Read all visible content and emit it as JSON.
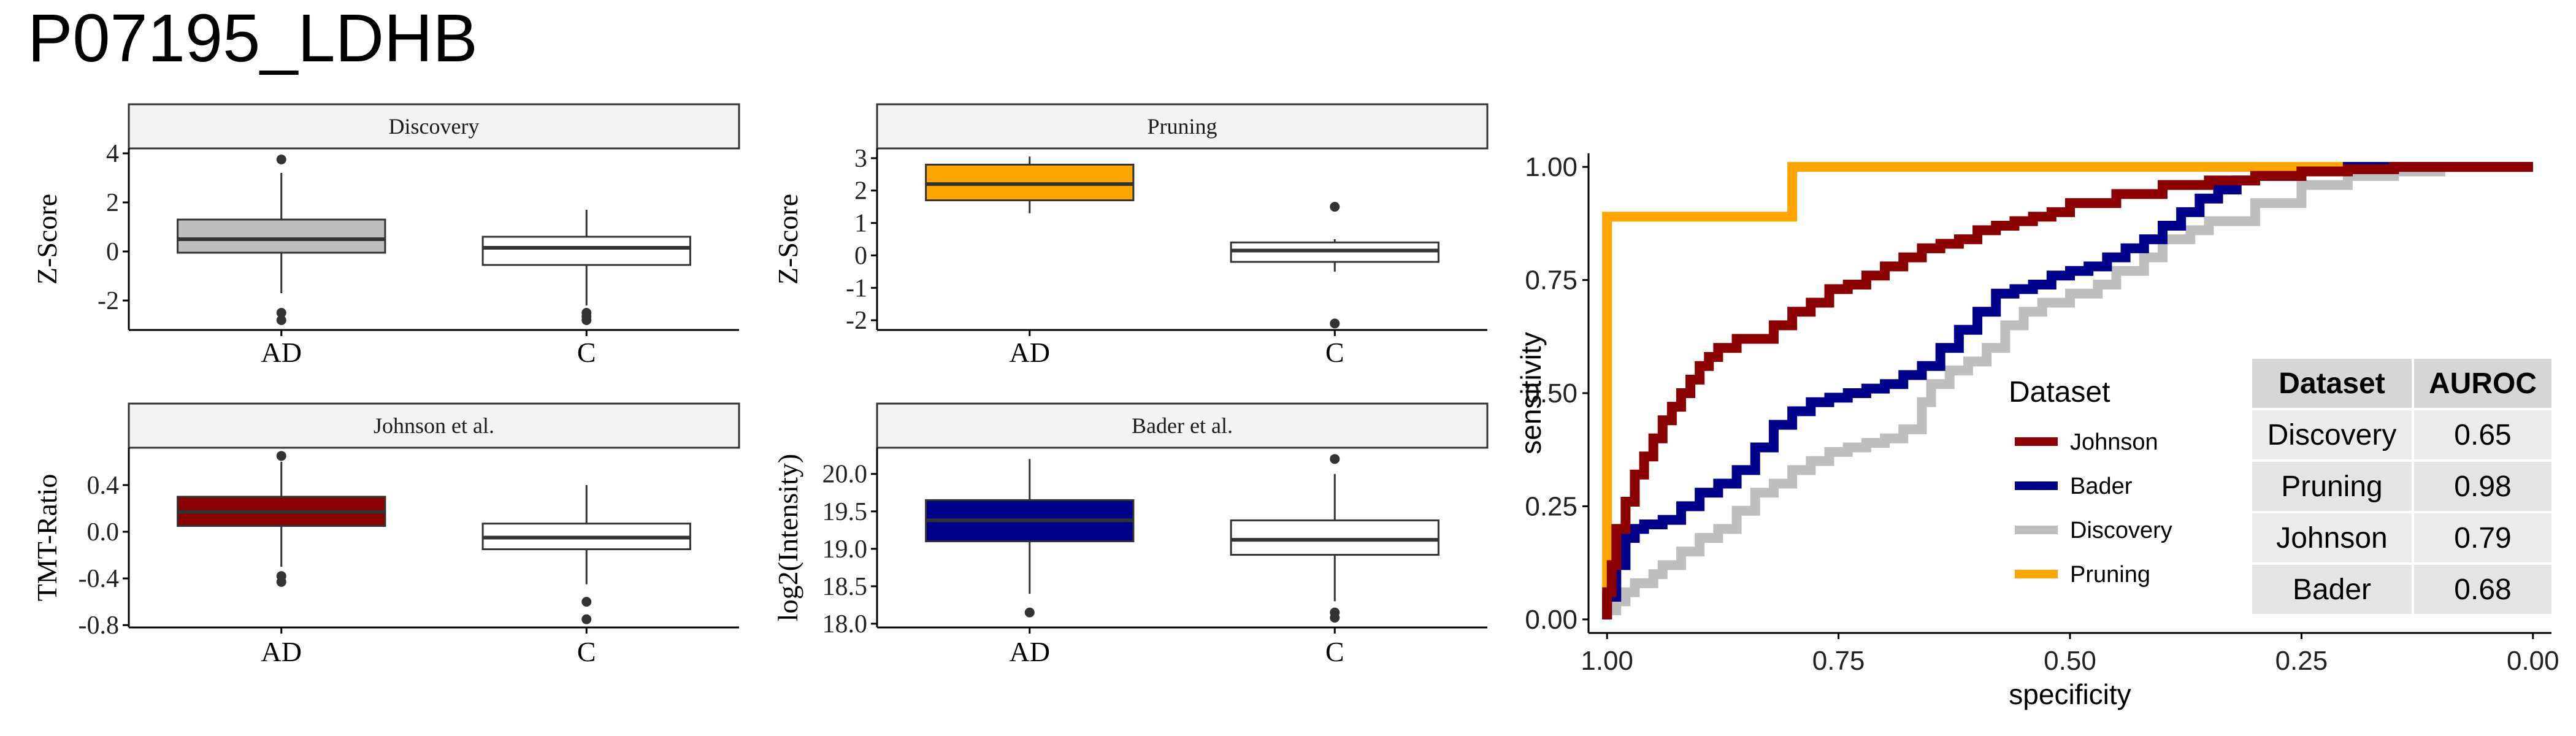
{
  "title": "P07195_LDHB",
  "colors": {
    "Johnson": "#8B0000",
    "Bader": "#00008B",
    "Discovery": "#BEBEBE",
    "Pruning": "#FFA500",
    "C": "#FFFFFF"
  },
  "chart_data": [
    {
      "type": "boxplot",
      "panel": "Discovery",
      "ylabel": "Z-Score",
      "ylim": [
        -3.2,
        4.2
      ],
      "yticks": [
        -2,
        0,
        2,
        4
      ],
      "groups": [
        {
          "name": "AD",
          "fill": "#BEBEBE",
          "q1": -0.05,
          "median": 0.5,
          "q3": 1.3,
          "whisker_low": -1.7,
          "whisker_high": 3.2,
          "outliers": [
            3.75,
            -2.5,
            -2.8
          ]
        },
        {
          "name": "C",
          "fill": "#FFFFFF",
          "q1": -0.55,
          "median": 0.15,
          "q3": 0.6,
          "whisker_low": -2.2,
          "whisker_high": 1.7,
          "outliers": [
            -2.5,
            -2.65,
            -2.8
          ]
        }
      ]
    },
    {
      "type": "boxplot",
      "panel": "Pruning",
      "ylabel": "Z-Score",
      "ylim": [
        -2.3,
        3.3
      ],
      "yticks": [
        -2,
        -1,
        0,
        1,
        2,
        3
      ],
      "groups": [
        {
          "name": "AD",
          "fill": "#FFA500",
          "q1": 1.7,
          "median": 2.2,
          "q3": 2.8,
          "whisker_low": 1.3,
          "whisker_high": 3.05,
          "outliers": []
        },
        {
          "name": "C",
          "fill": "#FFFFFF",
          "q1": -0.2,
          "median": 0.15,
          "q3": 0.4,
          "whisker_low": -0.5,
          "whisker_high": 0.5,
          "outliers": [
            1.5,
            -2.1
          ]
        }
      ]
    },
    {
      "type": "boxplot",
      "panel": "Johnson et al.",
      "ylabel": "TMT-Ratio",
      "ylim": [
        -0.82,
        0.72
      ],
      "yticks": [
        -0.8,
        -0.4,
        0.0,
        0.4
      ],
      "ytick_labels": [
        "-0.8",
        "-0.4",
        "0.0",
        "0.4"
      ],
      "groups": [
        {
          "name": "AD",
          "fill": "#8B0000",
          "q1": 0.05,
          "median": 0.17,
          "q3": 0.3,
          "whisker_low": -0.3,
          "whisker_high": 0.6,
          "outliers": [
            0.65,
            -0.38,
            -0.43
          ]
        },
        {
          "name": "C",
          "fill": "#FFFFFF",
          "q1": -0.15,
          "median": -0.05,
          "q3": 0.07,
          "whisker_low": -0.45,
          "whisker_high": 0.4,
          "outliers": [
            -0.6,
            -0.75
          ]
        }
      ]
    },
    {
      "type": "boxplot",
      "panel": "Bader et al.",
      "ylabel": "log2(Intensity)",
      "ylim": [
        17.95,
        20.35
      ],
      "yticks": [
        18.0,
        18.5,
        19.0,
        19.5,
        20.0
      ],
      "ytick_labels": [
        "18.0",
        "18.5",
        "19.0",
        "19.5",
        "20.0"
      ],
      "groups": [
        {
          "name": "AD",
          "fill": "#00008B",
          "q1": 19.1,
          "median": 19.38,
          "q3": 19.65,
          "whisker_low": 18.4,
          "whisker_high": 20.2,
          "outliers": [
            18.15
          ]
        },
        {
          "name": "C",
          "fill": "#FFFFFF",
          "q1": 18.92,
          "median": 19.12,
          "q3": 19.38,
          "whisker_low": 18.3,
          "whisker_high": 20.0,
          "outliers": [
            20.2,
            18.15,
            18.08
          ]
        }
      ]
    },
    {
      "type": "line",
      "subtype": "roc",
      "xlabel": "specificity",
      "ylabel": "sensitivity",
      "xlim": [
        1.02,
        -0.02
      ],
      "ylim": [
        -0.03,
        1.03
      ],
      "xticks": [
        1.0,
        0.75,
        0.5,
        0.25,
        0.0
      ],
      "xtick_labels": [
        "1.00",
        "0.75",
        "0.50",
        "0.25",
        "0.00"
      ],
      "yticks": [
        0.0,
        0.25,
        0.5,
        0.75,
        1.0
      ],
      "ytick_labels": [
        "0.00",
        "0.25",
        "0.50",
        "0.75",
        "1.00"
      ],
      "legend": {
        "title": "Dataset",
        "position": "center",
        "entries": [
          "Johnson",
          "Bader",
          "Discovery",
          "Pruning"
        ]
      },
      "series": [
        {
          "name": "Pruning",
          "color": "#FFA500",
          "points": [
            [
              1.0,
              0.0
            ],
            [
              1.0,
              0.89
            ],
            [
              0.8,
              0.89
            ],
            [
              0.8,
              1.0
            ],
            [
              0.0,
              1.0
            ]
          ]
        },
        {
          "name": "Discovery",
          "color": "#BEBEBE",
          "points": [
            [
              1.0,
              0.0
            ],
            [
              0.99,
              0.02
            ],
            [
              0.98,
              0.04
            ],
            [
              0.97,
              0.06
            ],
            [
              0.95,
              0.08
            ],
            [
              0.94,
              0.1
            ],
            [
              0.92,
              0.12
            ],
            [
              0.9,
              0.15
            ],
            [
              0.88,
              0.18
            ],
            [
              0.86,
              0.2
            ],
            [
              0.84,
              0.24
            ],
            [
              0.82,
              0.28
            ],
            [
              0.8,
              0.3
            ],
            [
              0.78,
              0.33
            ],
            [
              0.76,
              0.35
            ],
            [
              0.74,
              0.37
            ],
            [
              0.72,
              0.38
            ],
            [
              0.7,
              0.39
            ],
            [
              0.68,
              0.4
            ],
            [
              0.66,
              0.42
            ],
            [
              0.65,
              0.48
            ],
            [
              0.63,
              0.52
            ],
            [
              0.61,
              0.55
            ],
            [
              0.59,
              0.57
            ],
            [
              0.57,
              0.6
            ],
            [
              0.55,
              0.65
            ],
            [
              0.53,
              0.68
            ],
            [
              0.5,
              0.7
            ],
            [
              0.47,
              0.72
            ],
            [
              0.45,
              0.74
            ],
            [
              0.42,
              0.77
            ],
            [
              0.4,
              0.8
            ],
            [
              0.37,
              0.84
            ],
            [
              0.35,
              0.86
            ],
            [
              0.3,
              0.88
            ],
            [
              0.25,
              0.92
            ],
            [
              0.2,
              0.96
            ],
            [
              0.15,
              0.98
            ],
            [
              0.1,
              0.99
            ],
            [
              0.0,
              1.0
            ]
          ]
        },
        {
          "name": "Bader",
          "color": "#00008B",
          "points": [
            [
              1.0,
              0.0
            ],
            [
              0.99,
              0.05
            ],
            [
              0.98,
              0.12
            ],
            [
              0.97,
              0.18
            ],
            [
              0.96,
              0.2
            ],
            [
              0.94,
              0.21
            ],
            [
              0.92,
              0.22
            ],
            [
              0.9,
              0.25
            ],
            [
              0.88,
              0.28
            ],
            [
              0.86,
              0.3
            ],
            [
              0.84,
              0.33
            ],
            [
              0.82,
              0.38
            ],
            [
              0.8,
              0.43
            ],
            [
              0.78,
              0.46
            ],
            [
              0.76,
              0.48
            ],
            [
              0.74,
              0.49
            ],
            [
              0.72,
              0.5
            ],
            [
              0.7,
              0.51
            ],
            [
              0.68,
              0.52
            ],
            [
              0.66,
              0.54
            ],
            [
              0.64,
              0.56
            ],
            [
              0.62,
              0.6
            ],
            [
              0.6,
              0.64
            ],
            [
              0.58,
              0.68
            ],
            [
              0.56,
              0.72
            ],
            [
              0.54,
              0.73
            ],
            [
              0.52,
              0.74
            ],
            [
              0.5,
              0.76
            ],
            [
              0.48,
              0.77
            ],
            [
              0.46,
              0.78
            ],
            [
              0.44,
              0.8
            ],
            [
              0.42,
              0.82
            ],
            [
              0.4,
              0.84
            ],
            [
              0.38,
              0.87
            ],
            [
              0.36,
              0.9
            ],
            [
              0.34,
              0.93
            ],
            [
              0.32,
              0.95
            ],
            [
              0.3,
              0.97
            ],
            [
              0.25,
              0.98
            ],
            [
              0.2,
              0.99
            ],
            [
              0.15,
              1.0
            ],
            [
              0.0,
              1.0
            ]
          ]
        },
        {
          "name": "Johnson",
          "color": "#8B0000",
          "points": [
            [
              1.0,
              0.0
            ],
            [
              0.995,
              0.06
            ],
            [
              0.99,
              0.12
            ],
            [
              0.98,
              0.2
            ],
            [
              0.97,
              0.26
            ],
            [
              0.96,
              0.32
            ],
            [
              0.95,
              0.36
            ],
            [
              0.94,
              0.4
            ],
            [
              0.93,
              0.44
            ],
            [
              0.92,
              0.47
            ],
            [
              0.91,
              0.5
            ],
            [
              0.9,
              0.53
            ],
            [
              0.89,
              0.56
            ],
            [
              0.88,
              0.58
            ],
            [
              0.86,
              0.6
            ],
            [
              0.84,
              0.62
            ],
            [
              0.82,
              0.62
            ],
            [
              0.8,
              0.65
            ],
            [
              0.78,
              0.68
            ],
            [
              0.76,
              0.7
            ],
            [
              0.74,
              0.73
            ],
            [
              0.72,
              0.74
            ],
            [
              0.7,
              0.76
            ],
            [
              0.68,
              0.78
            ],
            [
              0.66,
              0.8
            ],
            [
              0.64,
              0.82
            ],
            [
              0.62,
              0.83
            ],
            [
              0.6,
              0.84
            ],
            [
              0.58,
              0.86
            ],
            [
              0.56,
              0.87
            ],
            [
              0.54,
              0.88
            ],
            [
              0.52,
              0.89
            ],
            [
              0.5,
              0.9
            ],
            [
              0.45,
              0.92
            ],
            [
              0.4,
              0.94
            ],
            [
              0.35,
              0.96
            ],
            [
              0.3,
              0.97
            ],
            [
              0.25,
              0.98
            ],
            [
              0.2,
              0.99
            ],
            [
              0.15,
              0.995
            ],
            [
              0.1,
              1.0
            ],
            [
              0.0,
              1.0
            ]
          ]
        }
      ]
    }
  ],
  "table": {
    "headers": [
      "Dataset",
      "AUROC"
    ],
    "rows": [
      [
        "Discovery",
        "0.65"
      ],
      [
        "Pruning",
        "0.98"
      ],
      [
        "Johnson",
        "0.79"
      ],
      [
        "Bader",
        "0.68"
      ]
    ]
  }
}
